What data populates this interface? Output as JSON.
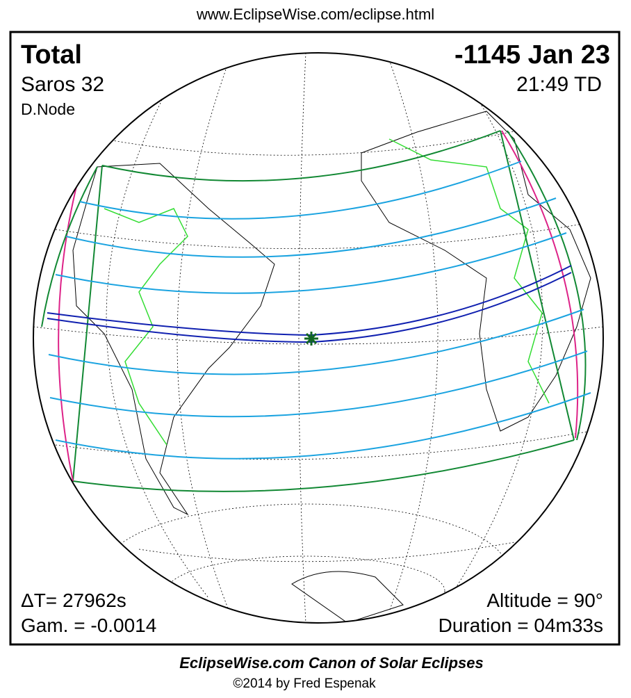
{
  "header": {
    "url": "www.EclipseWise.com/eclipse.html"
  },
  "map": {
    "type": "Total",
    "date": "-1145 Jan 23",
    "saros": "Saros  32",
    "time": "21:49 TD",
    "node": "D.Node",
    "delta_t": "ΔT=  27962s",
    "gamma": "Gam. = -0.0014",
    "altitude": "Altitude = 90°",
    "duration": "Duration = 04m33s"
  },
  "footer": {
    "title": "EclipseWise.com Canon of Solar Eclipses",
    "credit": "©2014 by Fred Espenak"
  }
}
